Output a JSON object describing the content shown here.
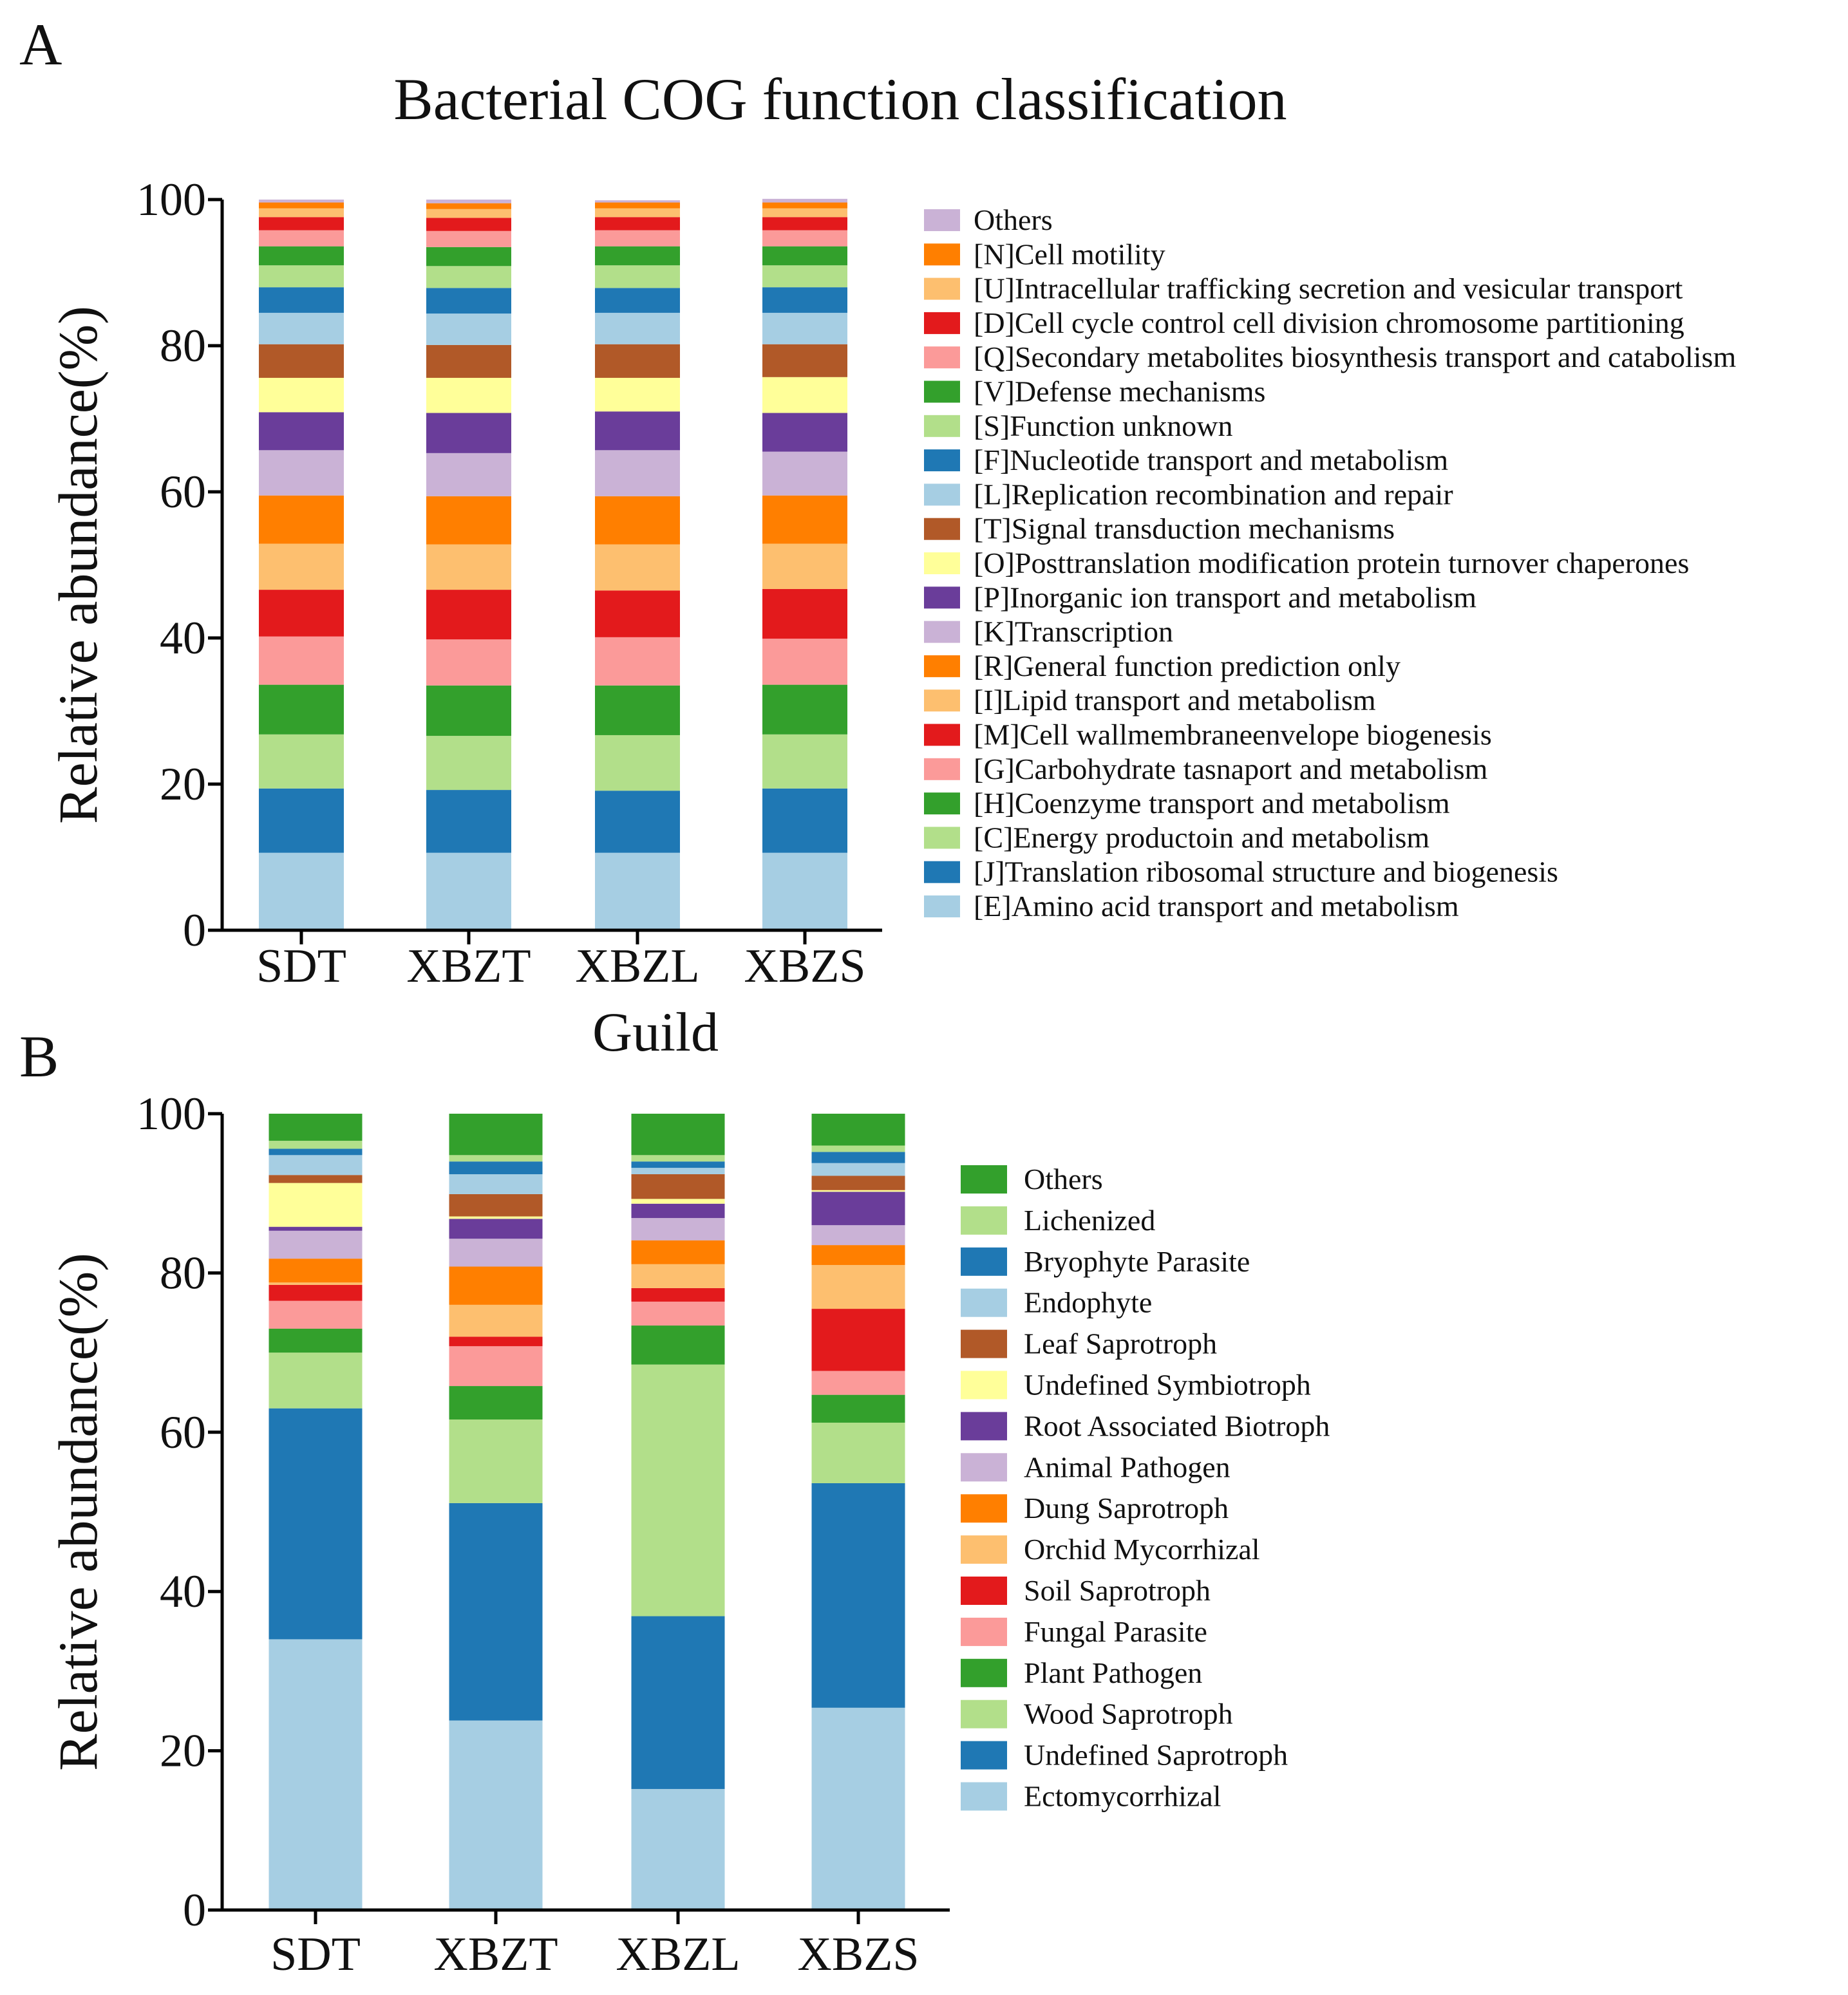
{
  "figure": {
    "panels": [
      "A",
      "B"
    ]
  },
  "chart_data": [
    {
      "panel": "A",
      "type": "bar",
      "stacked": true,
      "title": "Bacterial COG function classification",
      "xlabel": "",
      "ylabel": "Relative abundance(%)",
      "ylim": [
        0,
        100
      ],
      "yticks": [
        0,
        20,
        40,
        60,
        80,
        100
      ],
      "categories": [
        "SDT",
        "XBZT",
        "XBZL",
        "XBZS"
      ],
      "legend_position": "right",
      "series": [
        {
          "name": "[E]Amino acid transport and metabolism",
          "color": "#a6cee3",
          "values": [
            10.6,
            10.6,
            10.6,
            10.6
          ]
        },
        {
          "name": "[J]Translation ribosomal structure and biogenesis",
          "color": "#1f78b4",
          "values": [
            8.8,
            8.6,
            8.5,
            8.8
          ]
        },
        {
          "name": "[C]Energy productoin and metabolism",
          "color": "#b2df8a",
          "values": [
            7.4,
            7.4,
            7.6,
            7.4
          ]
        },
        {
          "name": "[H]Coenzyme transport and metabolism",
          "color": "#33a02c",
          "values": [
            6.8,
            6.9,
            6.8,
            6.8
          ]
        },
        {
          "name": "[G]Carbohydrate tasnaport and metabolism",
          "color": "#fb9a99",
          "values": [
            6.6,
            6.3,
            6.6,
            6.3
          ]
        },
        {
          "name": "[M]Cell wallmembraneenvelope biogenesis",
          "color": "#e31a1c",
          "values": [
            6.4,
            6.8,
            6.4,
            6.8
          ]
        },
        {
          "name": "[I]Lipid transport and metabolism",
          "color": "#fdbf6f",
          "values": [
            6.3,
            6.2,
            6.3,
            6.2
          ]
        },
        {
          "name": "[R]General function prediction only",
          "color": "#ff7f00",
          "values": [
            6.6,
            6.6,
            6.6,
            6.6
          ]
        },
        {
          "name": "[K]Transcription",
          "color": "#cab2d6",
          "values": [
            6.2,
            5.9,
            6.3,
            6.0
          ]
        },
        {
          "name": "[P]Inorganic ion transport and metabolism",
          "color": "#6a3d9a",
          "values": [
            5.2,
            5.5,
            5.3,
            5.3
          ]
        },
        {
          "name": "[O]Posttranslation modification protein turnover chaperones",
          "color": "#ffff99",
          "values": [
            4.7,
            4.8,
            4.6,
            4.9
          ]
        },
        {
          "name": "[T]Signal transduction mechanisms",
          "color": "#b15928",
          "values": [
            4.6,
            4.5,
            4.6,
            4.5
          ]
        },
        {
          "name": "[L]Replication recombination and repair",
          "color": "#a6cee3",
          "values": [
            4.3,
            4.3,
            4.3,
            4.3
          ]
        },
        {
          "name": "[F]Nucleotide transport and metabolism",
          "color": "#1f78b4",
          "values": [
            3.5,
            3.5,
            3.4,
            3.5
          ]
        },
        {
          "name": "[S]Function unknown",
          "color": "#b2df8a",
          "values": [
            3.0,
            3.0,
            3.1,
            3.0
          ]
        },
        {
          "name": "[V]Defense mechanisms",
          "color": "#33a02c",
          "values": [
            2.6,
            2.6,
            2.6,
            2.6
          ]
        },
        {
          "name": "[Q]Secondary metabolites biosynthesis transport and catabolism",
          "color": "#fb9a99",
          "values": [
            2.2,
            2.2,
            2.2,
            2.2
          ]
        },
        {
          "name": "[D]Cell cycle control cell division chromosome partitioning",
          "color": "#e31a1c",
          "values": [
            1.8,
            1.8,
            1.8,
            1.8
          ]
        },
        {
          "name": "[U]Intracellular trafficking secretion and vesicular transport",
          "color": "#fdbf6f",
          "values": [
            1.2,
            1.2,
            1.2,
            1.2
          ]
        },
        {
          "name": "[N]Cell motility",
          "color": "#ff7f00",
          "values": [
            0.8,
            0.8,
            0.8,
            0.8
          ]
        },
        {
          "name": "Others",
          "color": "#cab2d6",
          "values": [
            0.4,
            0.5,
            0.3,
            0.5
          ]
        }
      ]
    },
    {
      "panel": "B",
      "type": "bar",
      "stacked": true,
      "title": "Guild",
      "xlabel": "",
      "ylabel": "Relative abundance(%)",
      "ylim": [
        0,
        100
      ],
      "yticks": [
        0,
        20,
        40,
        60,
        80,
        100
      ],
      "categories": [
        "SDT",
        "XBZT",
        "XBZL",
        "XBZS"
      ],
      "legend_position": "right",
      "series": [
        {
          "name": "Ectomycorrhizal",
          "color": "#a6cee3",
          "values": [
            34.0,
            23.8,
            15.2,
            25.4
          ]
        },
        {
          "name": "Undefined Saprotroph",
          "color": "#1f78b4",
          "values": [
            29.0,
            27.3,
            21.7,
            28.2
          ]
        },
        {
          "name": "Wood Saprotroph",
          "color": "#b2df8a",
          "values": [
            7.0,
            10.5,
            31.6,
            7.6
          ]
        },
        {
          "name": "Plant Pathogen",
          "color": "#33a02c",
          "values": [
            3.0,
            4.2,
            4.9,
            3.5
          ]
        },
        {
          "name": "Fungal Parasite",
          "color": "#fb9a99",
          "values": [
            3.5,
            5.0,
            3.0,
            3.0
          ]
        },
        {
          "name": "Soil Saprotroph",
          "color": "#e31a1c",
          "values": [
            2.0,
            1.2,
            1.7,
            7.8
          ]
        },
        {
          "name": "Orchid Mycorrhizal",
          "color": "#fdbf6f",
          "values": [
            0.3,
            4.0,
            3.0,
            5.5
          ]
        },
        {
          "name": "Dung Saprotroph",
          "color": "#ff7f00",
          "values": [
            3.0,
            4.8,
            3.0,
            2.5
          ]
        },
        {
          "name": "Animal Pathogen",
          "color": "#cab2d6",
          "values": [
            3.5,
            3.5,
            2.8,
            2.5
          ]
        },
        {
          "name": "Root Associated Biotroph",
          "color": "#6a3d9a",
          "values": [
            0.5,
            2.5,
            1.8,
            4.2
          ]
        },
        {
          "name": "Undefined Symbiotroph",
          "color": "#ffff99",
          "values": [
            5.5,
            0.3,
            0.6,
            0.2
          ]
        },
        {
          "name": "Leaf Saprotroph",
          "color": "#b15928",
          "values": [
            1.0,
            2.8,
            3.1,
            1.8
          ]
        },
        {
          "name": "Endophyte",
          "color": "#a6cee3",
          "values": [
            2.5,
            2.5,
            0.8,
            1.6
          ]
        },
        {
          "name": "Bryophyte Parasite",
          "color": "#1f78b4",
          "values": [
            0.8,
            1.6,
            0.8,
            1.4
          ]
        },
        {
          "name": "Lichenized",
          "color": "#b2df8a",
          "values": [
            1.0,
            0.8,
            0.8,
            0.8
          ]
        },
        {
          "name": "Others",
          "color": "#33a02c",
          "values": [
            3.4,
            5.2,
            5.2,
            4.0
          ]
        }
      ]
    }
  ]
}
